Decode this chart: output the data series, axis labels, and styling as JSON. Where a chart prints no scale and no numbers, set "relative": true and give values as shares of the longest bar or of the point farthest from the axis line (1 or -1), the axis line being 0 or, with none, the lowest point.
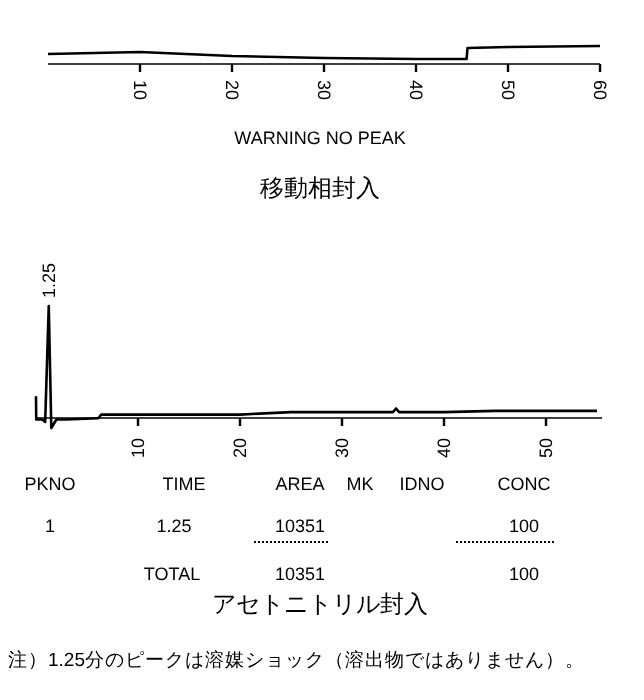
{
  "chart_data": [
    {
      "type": "line",
      "relative": true,
      "title": "移動相封入",
      "x": [
        0,
        10,
        20,
        30,
        40,
        45.5,
        45.6,
        50,
        60
      ],
      "values": [
        0.38,
        0.54,
        0.23,
        0.08,
        0.0,
        0.0,
        0.85,
        0.92,
        1.0
      ],
      "color": "#000000",
      "xlim": [
        0,
        60
      ],
      "xticks": [
        10,
        20,
        30,
        40,
        50,
        60
      ],
      "tick_labels": "x",
      "annotations": [
        "WARNING NO PEAK"
      ]
    },
    {
      "type": "line",
      "relative": true,
      "title": "アセトニトリル封入",
      "x": [
        0,
        0.02,
        0.6,
        0.9,
        1.25,
        1.5,
        2,
        3,
        6.1,
        6.4,
        10,
        20,
        25,
        30,
        35,
        35.3,
        35.6,
        40,
        45,
        55
      ],
      "values": [
        0.26,
        0.07,
        0.07,
        0.05,
        1,
        0,
        0.07,
        0.07,
        0.08,
        0.11,
        0.11,
        0.11,
        0.13,
        0.13,
        0.13,
        0.16,
        0.13,
        0.13,
        0.14,
        0.14
      ],
      "color": "#000000",
      "xlim": [
        0,
        55.5
      ],
      "xticks": [
        10,
        20,
        30,
        40,
        50
      ],
      "tick_labels": "x",
      "annotations": [
        {
          "text": "1.25",
          "x": 1.25,
          "y": 1
        },
        "PKNO",
        "TIME",
        "AREA",
        "MK",
        "IDNO",
        "CONC",
        "1",
        "1.25",
        "10351",
        "100",
        "TOTAL",
        "10351",
        "100",
        "注）1.25分のピークは溶媒ショック（溶出物ではありません）。"
      ]
    }
  ]
}
